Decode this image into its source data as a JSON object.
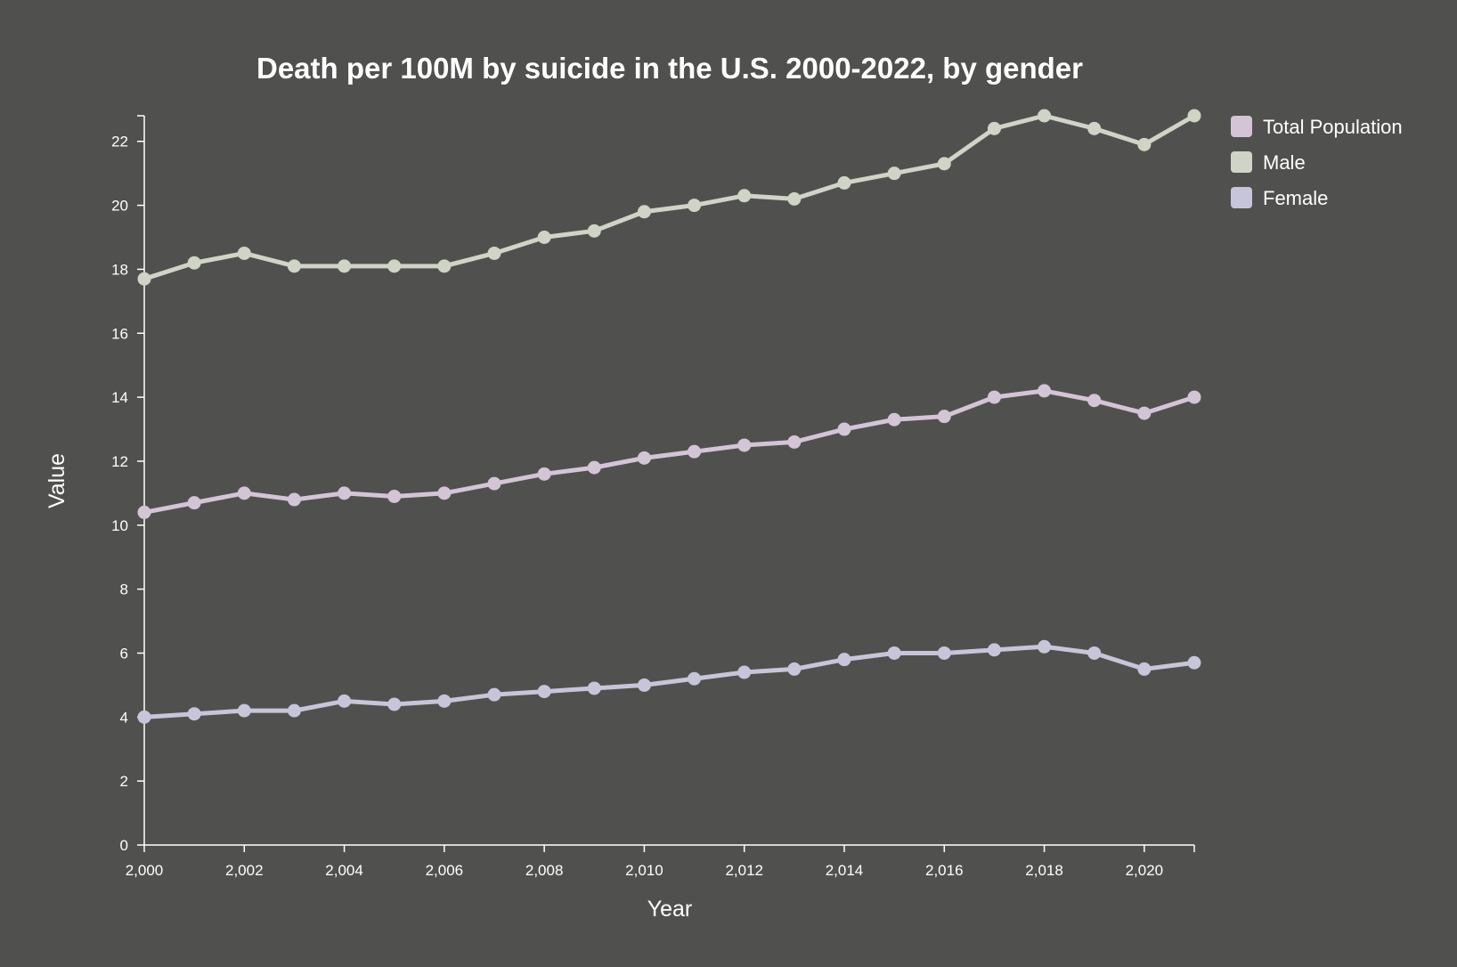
{
  "colors": {
    "background": "#50504e",
    "axis": "#ffffff",
    "text": "#ffffff"
  },
  "chart_data": {
    "type": "line",
    "title": "Death per 100M by suicide in the U.S. 2000-2022, by gender",
    "xlabel": "Year",
    "ylabel": "Value",
    "xlim": [
      2000,
      2021
    ],
    "ylim": [
      0,
      22.8
    ],
    "x_ticks": [
      2000,
      2002,
      2004,
      2006,
      2008,
      2010,
      2012,
      2014,
      2016,
      2018,
      2020
    ],
    "x_tick_labels": [
      "2,000",
      "2,002",
      "2,004",
      "2,006",
      "2,008",
      "2,010",
      "2,012",
      "2,014",
      "2,016",
      "2,018",
      "2,020"
    ],
    "y_ticks": [
      0,
      2,
      4,
      6,
      8,
      10,
      12,
      14,
      16,
      18,
      20,
      22
    ],
    "y_tick_labels": [
      "0",
      "2",
      "4",
      "6",
      "8",
      "10",
      "12",
      "14",
      "16",
      "18",
      "20",
      "22"
    ],
    "grid": false,
    "legend_position": "top-right",
    "x": [
      2000,
      2001,
      2002,
      2003,
      2004,
      2005,
      2006,
      2007,
      2008,
      2009,
      2010,
      2011,
      2012,
      2013,
      2014,
      2015,
      2016,
      2017,
      2018,
      2019,
      2020,
      2021
    ],
    "series": [
      {
        "name": "Total Population",
        "color": "#d3c4d6",
        "values": [
          10.4,
          10.7,
          11.0,
          10.8,
          11.0,
          10.9,
          11.0,
          11.3,
          11.6,
          11.8,
          12.1,
          12.3,
          12.5,
          12.6,
          13.0,
          13.3,
          13.4,
          14.0,
          14.2,
          13.9,
          13.5,
          14.0
        ]
      },
      {
        "name": "Male",
        "color": "#cfd4c6",
        "values": [
          17.7,
          18.2,
          18.5,
          18.1,
          18.1,
          18.1,
          18.1,
          18.5,
          19.0,
          19.2,
          19.8,
          20.0,
          20.3,
          20.2,
          20.7,
          21.0,
          21.3,
          22.4,
          22.8,
          22.4,
          21.9,
          22.8
        ]
      },
      {
        "name": "Female",
        "color": "#c6c5d9",
        "values": [
          4.0,
          4.1,
          4.2,
          4.2,
          4.5,
          4.4,
          4.5,
          4.7,
          4.8,
          4.9,
          5.0,
          5.2,
          5.4,
          5.5,
          5.8,
          6.0,
          6.0,
          6.1,
          6.2,
          6.0,
          5.5,
          5.7
        ]
      }
    ]
  }
}
